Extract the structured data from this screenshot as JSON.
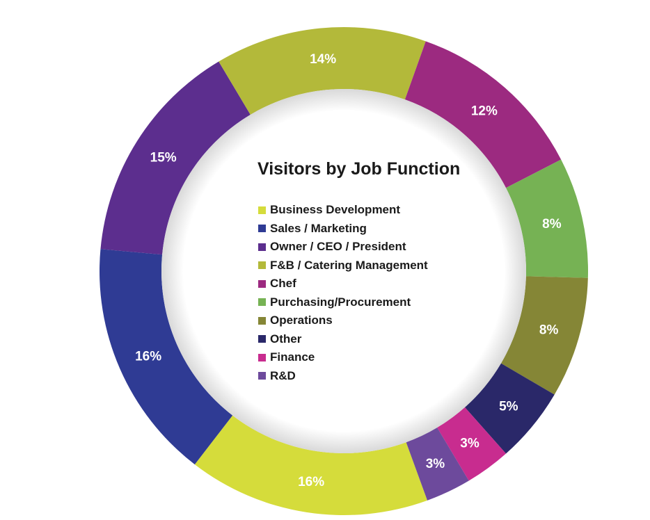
{
  "chart_data": {
    "type": "pie",
    "variant": "donut",
    "title": "Visitors by Job Function",
    "legend_position": "center",
    "slices": [
      {
        "label": "Business Development",
        "value": 16,
        "value_label": "16%",
        "color": "#d5dc3b"
      },
      {
        "label": "Sales / Marketing",
        "value": 16,
        "value_label": "16%",
        "color": "#2f3b94"
      },
      {
        "label": "Owner / CEO / President",
        "value": 15,
        "value_label": "15%",
        "color": "#5c2e8e"
      },
      {
        "label": "F&B / Catering Management",
        "value": 14,
        "value_label": "14%",
        "color": "#b3b93a"
      },
      {
        "label": "Chef",
        "value": 12,
        "value_label": "12%",
        "color": "#9c2a80"
      },
      {
        "label": "Purchasing/Procurement",
        "value": 8,
        "value_label": "8%",
        "color": "#76b254"
      },
      {
        "label": "Operations",
        "value": 8,
        "value_label": "8%",
        "color": "#858636"
      },
      {
        "label": "Other",
        "value": 5,
        "value_label": "5%",
        "color": "#2a2869"
      },
      {
        "label": "Finance",
        "value": 3,
        "value_label": "3%",
        "color": "#c82c8f"
      },
      {
        "label": "R&D",
        "value": 3,
        "value_label": "3%",
        "color": "#6d4a9c"
      }
    ]
  }
}
